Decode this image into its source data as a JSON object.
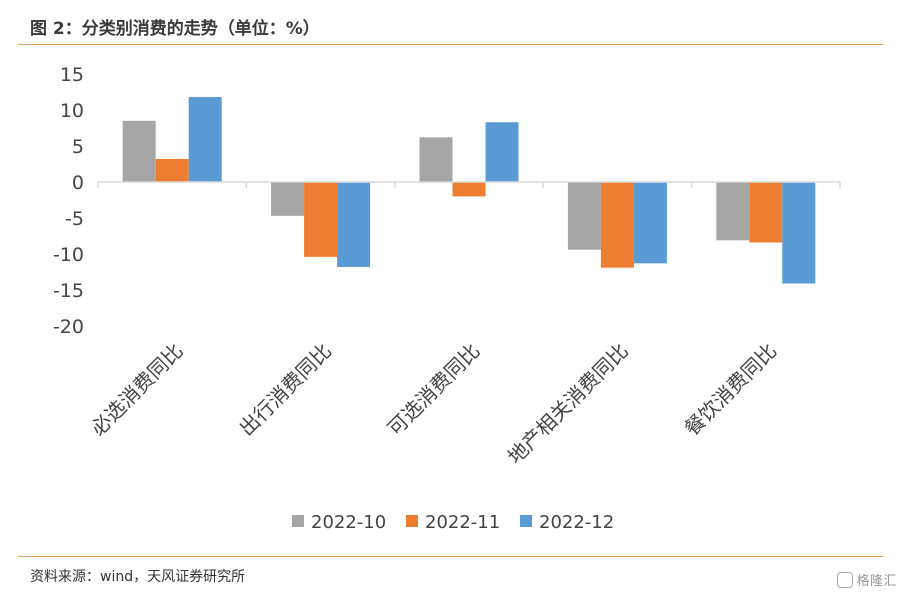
{
  "header": {
    "title": "图 2：分类别消费的走势（单位：%）"
  },
  "footer": {
    "source": "资料来源：wind，天风证券研究所",
    "watermark": "格隆汇"
  },
  "colors": {
    "accent_rule": "#d9a35f",
    "axis": "#d9d9d9"
  },
  "chart_data": {
    "type": "bar",
    "categories": [
      "必选消费同比",
      "出行消费同比",
      "可选消费同比",
      "地产相关消费同比",
      "餐饮消费同比"
    ],
    "series": [
      {
        "name": "2022-10",
        "color": "#a5a5a5",
        "values": [
          8.5,
          -4.7,
          6.2,
          -9.4,
          -8.1
        ]
      },
      {
        "name": "2022-11",
        "color": "#ed7d31",
        "values": [
          3.2,
          -10.4,
          -2.0,
          -11.9,
          -8.4
        ]
      },
      {
        "name": "2022-12",
        "color": "#5b9bd5",
        "values": [
          11.8,
          -11.8,
          8.3,
          -11.3,
          -14.1
        ]
      }
    ],
    "ylim": [
      -20,
      15
    ],
    "yticks": [
      15,
      10,
      5,
      0,
      -5,
      -10,
      -15,
      -20
    ],
    "xlabel": "",
    "ylabel": "",
    "legend_position": "bottom-center",
    "grid": false
  }
}
